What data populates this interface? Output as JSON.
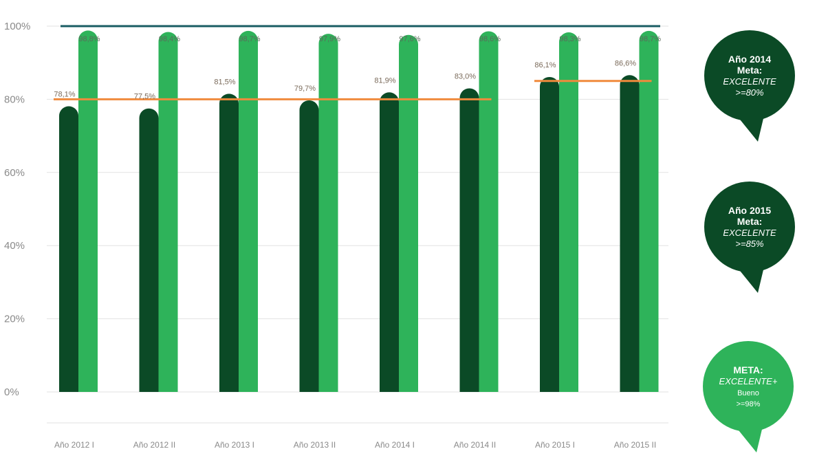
{
  "chart_data": {
    "type": "bar",
    "categories": [
      "Año 2012 I",
      "Año 2012 II",
      "Año 2013 I",
      "Año 2013 II",
      "Año 2014 I",
      "Año 2014 II",
      "Año 2015 I",
      "Año 2015 II"
    ],
    "series": [
      {
        "values": [
          78.1,
          77.5,
          81.5,
          79.7,
          81.9,
          83.0,
          86.1,
          86.6
        ],
        "labels": [
          "78,1%",
          "77,5%",
          "81,5%",
          "79,7%",
          "81,9%",
          "83,0%",
          "86,1%",
          "86,6%"
        ],
        "color": "#0b4a26"
      },
      {
        "values": [
          98.8,
          98.4,
          98.7,
          97.9,
          97.6,
          98.6,
          98.3,
          98.7
        ],
        "labels": [
          "98,8%",
          "98,4%",
          "98,7%",
          "97,9%",
          "97,6%",
          "98,6%",
          "98,3%",
          "98,7%"
        ],
        "color": "#2eb35a"
      }
    ],
    "yticks": [
      "100%",
      "80%",
      "60%",
      "40%",
      "20%",
      "0%"
    ],
    "ylim": [
      0,
      100
    ],
    "grid": true,
    "reference_lines": [
      {
        "value": 80,
        "from": 0,
        "to": 5,
        "color": "#f08a3c"
      },
      {
        "value": 85,
        "from": 6,
        "to": 7,
        "color": "#f08a3c"
      },
      {
        "value": 100,
        "from": 0,
        "to": 7,
        "color": "#1a5c63"
      }
    ],
    "annotations": [
      {
        "lines": [
          "Año 2014",
          "Meta:",
          "EXCELENTE",
          ">=80%"
        ],
        "color": "#0b4a26"
      },
      {
        "lines": [
          "Año 2015",
          "Meta:",
          "EXCELENTE",
          ">=85%"
        ],
        "color": "#0b4a26"
      },
      {
        "lines": [
          "META:",
          "EXCELENTE+",
          "Bueno",
          ">=98%"
        ],
        "color": "#2eb35a"
      }
    ]
  }
}
